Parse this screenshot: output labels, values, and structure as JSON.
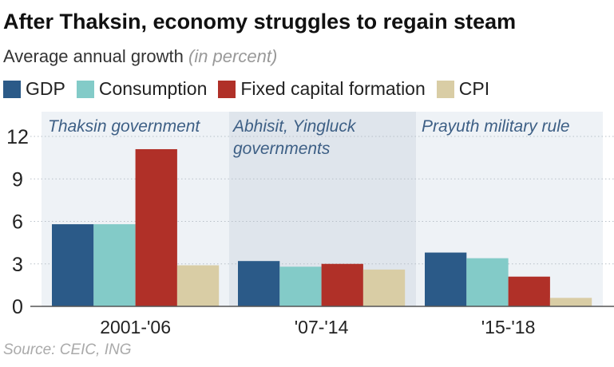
{
  "title": "After Thaksin, economy struggles to regain steam",
  "subtitle": "Average annual growth",
  "subtitle_unit": "(in percent)",
  "source": "Source: CEIC, ING",
  "chart_data": {
    "type": "bar",
    "categories": [
      "2001-'06",
      "'07-'14",
      "'15-'18"
    ],
    "panels": [
      "Thaksin government",
      "Abhisit, Yingluck governments",
      "Prayuth military rule"
    ],
    "series": [
      {
        "name": "GDP",
        "color": "#2b5a88",
        "values": [
          5.8,
          3.2,
          3.8
        ]
      },
      {
        "name": "Consumption",
        "color": "#83cbc8",
        "values": [
          5.8,
          2.8,
          3.4
        ]
      },
      {
        "name": "Fixed capital formation",
        "color": "#b03028",
        "values": [
          11.1,
          3.0,
          2.1
        ]
      },
      {
        "name": "CPI",
        "color": "#d9cda5",
        "values": [
          2.9,
          2.6,
          0.6
        ]
      }
    ],
    "yticks": [
      0,
      3,
      6,
      9,
      12
    ],
    "ylim": [
      0,
      12
    ],
    "grid": true,
    "legend": "top"
  }
}
